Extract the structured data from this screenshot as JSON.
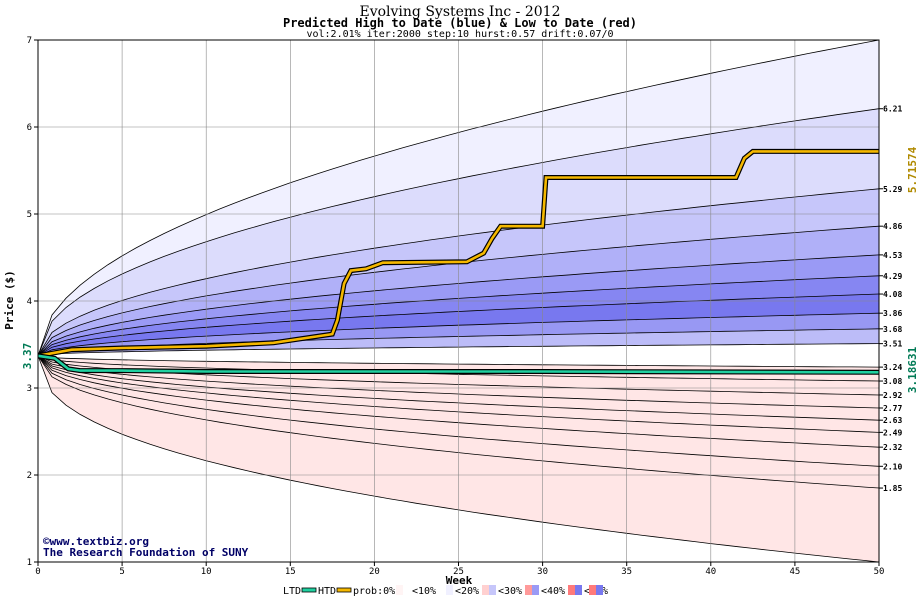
{
  "chart_data": {
    "type": "area",
    "title": "Evolving Systems Inc - 2012",
    "subtitle": "Predicted High to Date (blue) &  Low to Date (red)",
    "params": "vol:2.01% iter:2000 step:10 hurst:0.57 drift:0.07/0",
    "xlabel": "Week",
    "ylabel": "Price ($)",
    "xlim": [
      0,
      50
    ],
    "ylim": [
      1,
      7
    ],
    "x_ticks": [
      0,
      5,
      10,
      15,
      20,
      25,
      30,
      35,
      40,
      45,
      50
    ],
    "y_ticks": [
      1,
      2,
      3,
      4,
      5,
      6,
      7
    ],
    "grid": true,
    "start_price": 3.37,
    "start_label": "3.37",
    "high_to_date_final": "5.71574",
    "low_to_date_final": "3.18631",
    "high_percentile_ends": [
      6.21,
      5.29,
      4.86,
      4.53,
      4.29,
      4.08,
      3.86,
      3.68,
      3.51
    ],
    "low_percentile_ends": [
      3.24,
      3.08,
      2.92,
      2.77,
      2.63,
      2.49,
      2.32,
      2.1,
      1.85
    ],
    "right_labels": [
      "6.21",
      "5.29",
      "4.86",
      "4.53",
      "4.29",
      "4.08",
      "3.86",
      "3.68",
      "3.51",
      "3.24",
      "3.08",
      "2.92",
      "2.77",
      "2.63",
      "2.49",
      "2.32",
      "2.10",
      "1.85"
    ],
    "high_band_colors": [
      "#f0f0ff",
      "#dcdcfc",
      "#c6c6fa",
      "#b0b0f8",
      "#9a9af5",
      "#8686f2",
      "#7878ef",
      "#9898f3",
      "#bcbcf8"
    ],
    "low_band_colors": [
      "#ffd8d8",
      "#ffc0c0",
      "#ffaaaa",
      "#ff9494",
      "#ff8484",
      "#ff9a9a",
      "#ffb2b2",
      "#ffcaca",
      "#ffe6e6"
    ],
    "outer_bounds": {
      "upper_final": 7.0,
      "lower_final": 1.0
    },
    "high_to_date": [
      [
        0,
        3.37
      ],
      [
        2,
        3.44
      ],
      [
        5,
        3.46
      ],
      [
        10,
        3.48
      ],
      [
        14,
        3.52
      ],
      [
        17.5,
        3.62
      ],
      [
        17.8,
        3.78
      ],
      [
        18.2,
        4.2
      ],
      [
        18.6,
        4.35
      ],
      [
        19.5,
        4.37
      ],
      [
        20.5,
        4.44
      ],
      [
        25.5,
        4.45
      ],
      [
        26.5,
        4.55
      ],
      [
        27,
        4.72
      ],
      [
        27.5,
        4.86
      ],
      [
        28.5,
        4.86
      ],
      [
        30,
        4.86
      ],
      [
        30.2,
        5.42
      ],
      [
        34,
        5.42
      ],
      [
        41.5,
        5.42
      ],
      [
        42,
        5.64
      ],
      [
        42.5,
        5.72
      ],
      [
        50,
        5.72
      ]
    ],
    "low_to_date": [
      [
        0,
        3.37
      ],
      [
        1,
        3.34
      ],
      [
        1.8,
        3.22
      ],
      [
        2.5,
        3.2
      ],
      [
        5,
        3.2
      ],
      [
        10,
        3.19
      ],
      [
        17,
        3.19
      ],
      [
        30,
        3.19
      ],
      [
        50,
        3.18
      ]
    ],
    "legend": {
      "ltd": "LTD",
      "htd": "HTD",
      "prob_label": "prob:0%",
      "items": [
        "<10%",
        "<20%",
        "<30%",
        "<40%",
        "<50%"
      ],
      "colors": [
        "#fff4f4",
        "#f0f0ff",
        "#ffd0d0",
        "#c6c6fa",
        "#ff9a9a",
        "#9a9af5",
        "#ff7a7a",
        "#7878ef"
      ]
    },
    "credit_line1": "www.textbiz.org",
    "credit_line2": "The Research Foundation of SUNY"
  }
}
